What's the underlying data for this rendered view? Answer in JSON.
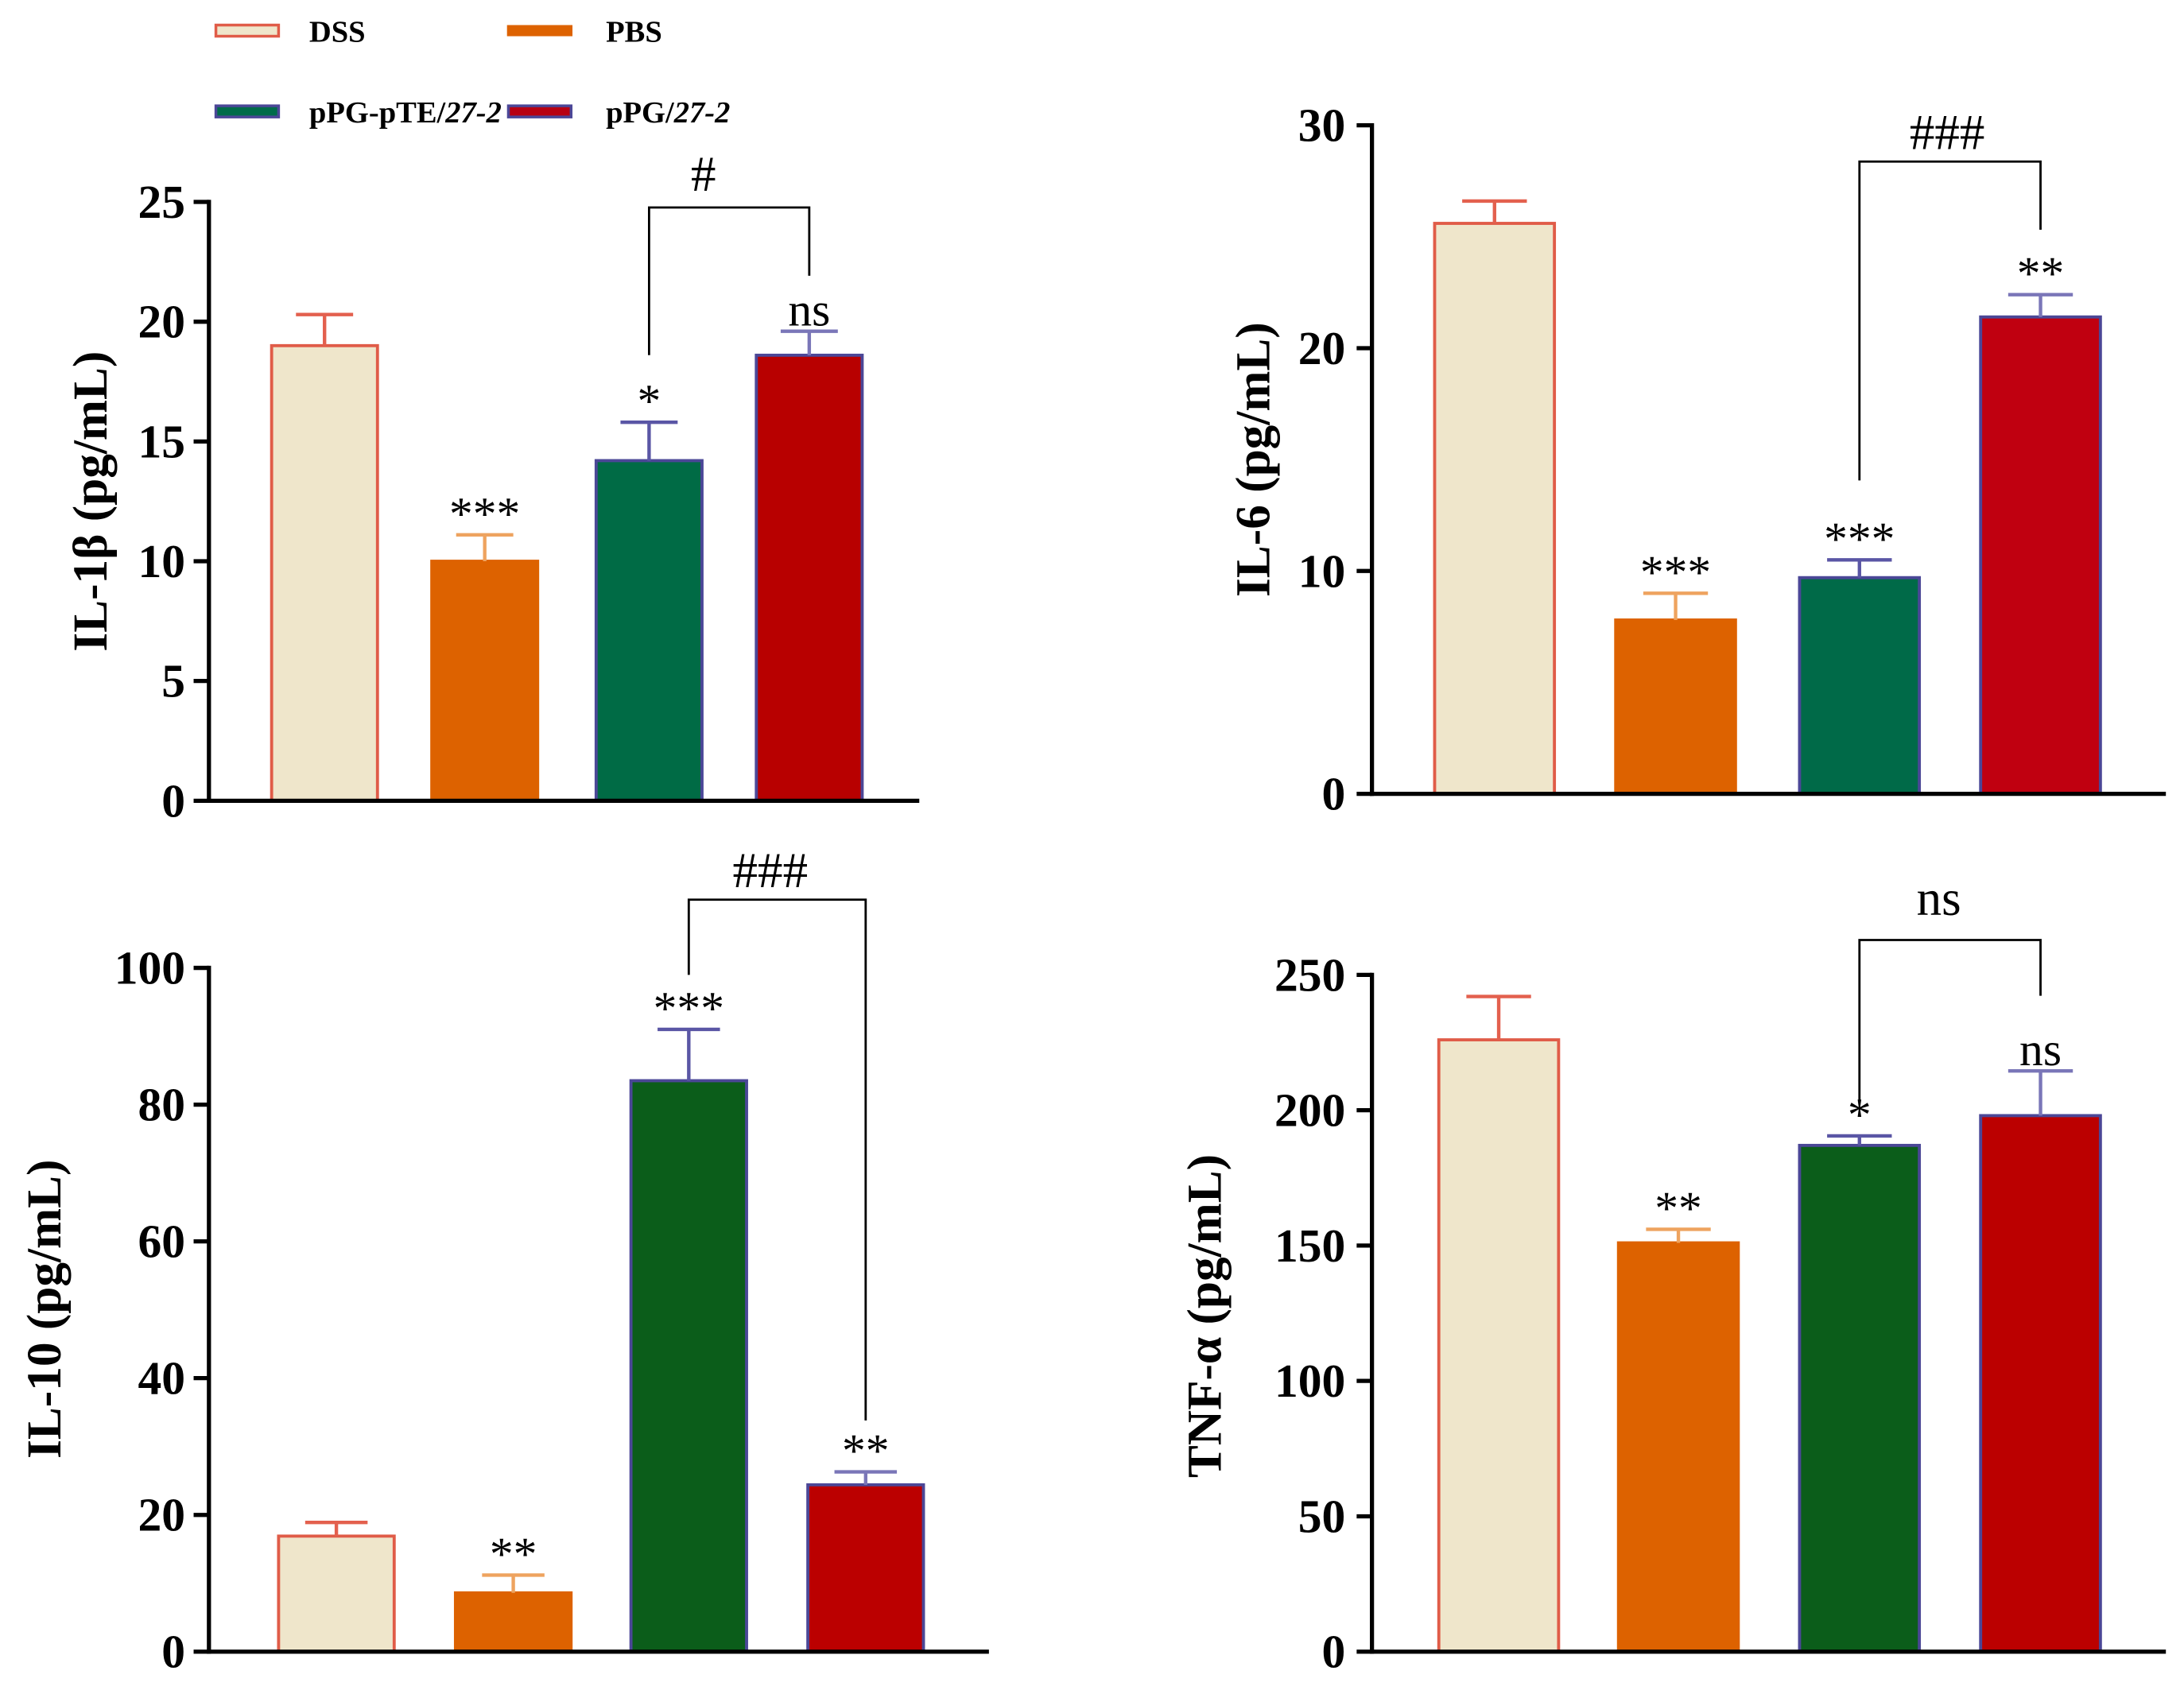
{
  "legend": {
    "items": [
      {
        "label": "DSS",
        "label_italic": "",
        "fill": "#efe6cb",
        "stroke": "#e05c48",
        "error_color": "#e3604e"
      },
      {
        "label": "PBS",
        "label_italic": "",
        "fill": "#dd6200",
        "stroke": "#dd6200",
        "error_color": "#eea35f"
      },
      {
        "label": "pPG-pTE/",
        "label_italic": "27-2",
        "fill": "#006b4a",
        "stroke": "#4b4797",
        "error_color": "#5a56a5"
      },
      {
        "label": "pPG/",
        "label_italic": "27-2",
        "fill": "#b70012",
        "stroke": "#4b4797",
        "error_color": "#7a76b8"
      }
    ]
  },
  "chart_data": [
    {
      "type": "bar",
      "ylabel": "IL-1β (pg/mL)",
      "ylim": [
        0,
        25
      ],
      "yticks": [
        0,
        5,
        10,
        15,
        20,
        25
      ],
      "values": [
        19.0,
        10.0,
        14.2,
        18.6
      ],
      "errors": [
        1.3,
        1.1,
        1.6,
        1.0
      ],
      "fills": [
        "#efe6cb",
        "#dd6200",
        "#006b45",
        "#b80000"
      ],
      "annotations": [
        null,
        "***",
        "*",
        "ns"
      ],
      "comparison": {
        "between": [
          2,
          3
        ],
        "label": "#"
      }
    },
    {
      "type": "bar",
      "ylabel": "IL-6 (pg/mL)",
      "ylim": [
        0,
        30
      ],
      "yticks": [
        0,
        10,
        20,
        30
      ],
      "values": [
        25.6,
        7.8,
        9.7,
        21.4
      ],
      "errors": [
        1.0,
        1.2,
        0.8,
        1.0
      ],
      "fills": [
        "#efe6cb",
        "#dd6200",
        "#006a48",
        "#c00010"
      ],
      "annotations": [
        null,
        "***",
        "***",
        "**"
      ],
      "comparison": {
        "between": [
          2,
          3
        ],
        "label": "###"
      }
    },
    {
      "type": "bar",
      "ylabel": "IL-10 (pg/mL)",
      "ylim": [
        0,
        100
      ],
      "yticks": [
        0,
        20,
        40,
        60,
        80,
        100
      ],
      "values": [
        16.9,
        8.6,
        83.5,
        24.4
      ],
      "errors": [
        2.0,
        2.6,
        7.5,
        1.9
      ],
      "fills": [
        "#efe6cb",
        "#dd6200",
        "#0b5d1a",
        "#bb0000"
      ],
      "annotations": [
        null,
        "**",
        "***",
        "**"
      ],
      "comparison": {
        "between": [
          2,
          3
        ],
        "label": "###"
      }
    },
    {
      "type": "bar",
      "ylabel": "TNF-α (pg/mL)",
      "ylim": [
        0,
        250
      ],
      "yticks": [
        0,
        50,
        100,
        150,
        200,
        250
      ],
      "values": [
        226,
        151,
        187,
        198
      ],
      "errors": [
        16,
        5,
        3.5,
        16.5
      ],
      "fills": [
        "#efe6cb",
        "#dd6200",
        "#0b5d1a",
        "#bb0000"
      ],
      "annotations": [
        null,
        "**",
        "*",
        "ns"
      ],
      "comparison": {
        "between": [
          2,
          3
        ],
        "label": "ns"
      }
    }
  ]
}
